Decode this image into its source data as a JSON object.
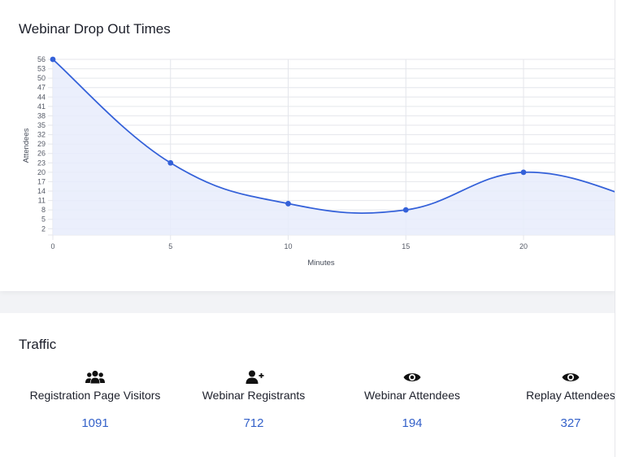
{
  "chart_section": {
    "title": "Webinar Drop Out Times"
  },
  "chart_data": {
    "type": "area",
    "title": "Webinar Drop Out Times",
    "xlabel": "Minutes",
    "ylabel": "Attendees",
    "x_ticks": [
      0,
      5,
      10,
      15,
      20
    ],
    "y_ticks": [
      2,
      5,
      8,
      11,
      14,
      17,
      20,
      23,
      26,
      29,
      32,
      35,
      38,
      41,
      44,
      47,
      50,
      53,
      56
    ],
    "xlim": [
      0,
      24
    ],
    "ylim": [
      0,
      56
    ],
    "grid": true,
    "series": [
      {
        "x": [
          0,
          5,
          10,
          15,
          20,
          25
        ],
        "values": [
          56,
          23,
          10,
          8,
          20,
          11
        ]
      }
    ],
    "colors": {
      "line": "#3461d9",
      "fill": "#e8ecfc",
      "grid": "#e4e6eb"
    }
  },
  "traffic": {
    "title": "Traffic",
    "stats": [
      {
        "icon": "users-group-icon",
        "label": "Registration Page Visitors",
        "value": "1091"
      },
      {
        "icon": "user-plus-icon",
        "label": "Webinar Registrants",
        "value": "712"
      },
      {
        "icon": "eye-icon",
        "label": "Webinar Attendees",
        "value": "194"
      },
      {
        "icon": "eye-icon",
        "label": "Replay Attendees",
        "value": "327"
      }
    ],
    "accent_color": "#3461c9"
  }
}
